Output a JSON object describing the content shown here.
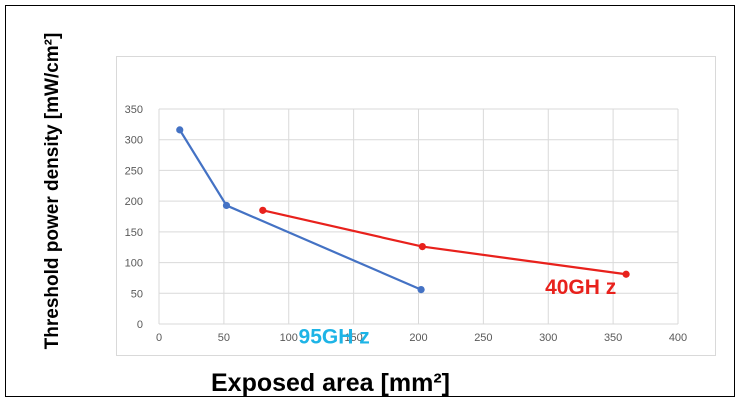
{
  "chart_data": {
    "type": "line",
    "xlabel": "Exposed area [mm²]",
    "ylabel": "Threshold power density [mW/cm²]",
    "xlim": [
      0,
      400
    ],
    "ylim": [
      0,
      350
    ],
    "xticks": [
      "0",
      "50",
      "100",
      "150",
      "200",
      "250",
      "300",
      "350",
      "400"
    ],
    "yticks": [
      "0",
      "50",
      "100",
      "150",
      "200",
      "250",
      "300",
      "350"
    ],
    "grid": true,
    "series": [
      {
        "name": "95GH z",
        "color": "#4472c4",
        "label_color": "#1eb4e6",
        "label_pos": [
          135,
          -20
        ],
        "x": [
          16,
          52,
          202
        ],
        "y": [
          316,
          193,
          56
        ]
      },
      {
        "name": "40GH z",
        "color": "#e8211c",
        "label_color": "#e8211c",
        "label_pos": [
          325,
          60
        ],
        "x": [
          80,
          203,
          360
        ],
        "y": [
          185,
          126,
          81
        ]
      }
    ]
  }
}
